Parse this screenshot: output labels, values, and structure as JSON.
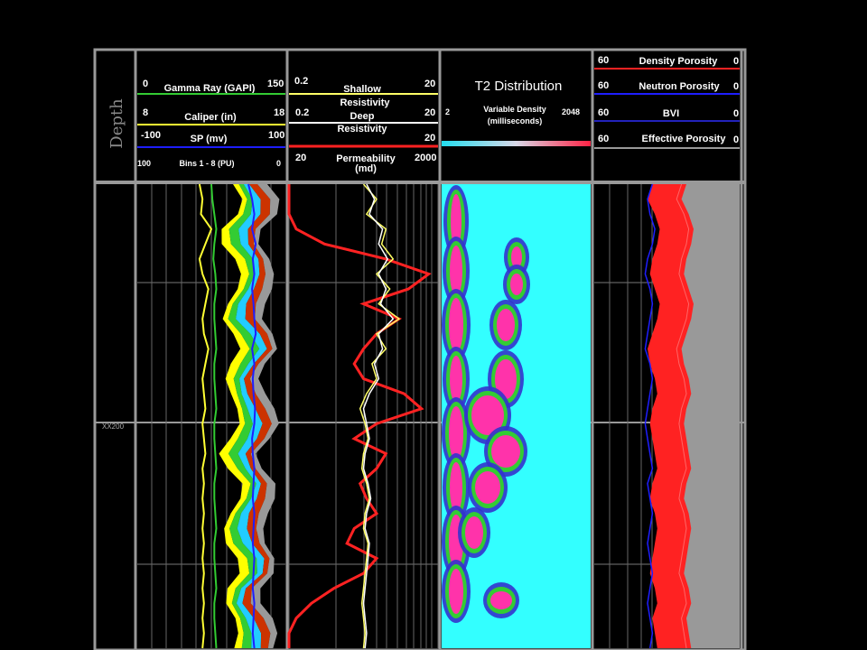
{
  "depth": {
    "title": "Depth",
    "tick_label": "XX200"
  },
  "track1": {
    "gamma": {
      "label": "Gamma Ray (GAPI)",
      "min": "0",
      "max": "150",
      "color": "#33cc33"
    },
    "caliper": {
      "label": "Caliper (in)",
      "min": "8",
      "max": "18",
      "color": "#ffff33"
    },
    "sp": {
      "label": "SP (mv)",
      "min": "-100",
      "max": "100",
      "color": "#0000cc"
    },
    "bins": {
      "label": "Bins 1 - 8 (PU)",
      "min": "100",
      "max": "0"
    }
  },
  "track2": {
    "shallow": {
      "label_1": "Shallow",
      "label_2": "Resistivity",
      "min": "0.2",
      "max": "20",
      "color": "#ffff66"
    },
    "deep": {
      "label_1": "Deep",
      "label_2": "Resistivity",
      "min": "0.2",
      "max": "20",
      "color": "#ffffff"
    },
    "perm": {
      "label_1": "Permeability",
      "label_2": "(md)",
      "min": "20",
      "max": "2000",
      "color": "#ff2222"
    }
  },
  "track3": {
    "title": "T2 Distribution",
    "sub_1": "Variable Density",
    "sub_2": "(milliseconds)",
    "min": "2",
    "max": "2048"
  },
  "track4": {
    "density": {
      "label": "Density Porosity",
      "min": "60",
      "max": "0",
      "color": "#ff2222"
    },
    "neutron": {
      "label": "Neutron Porosity",
      "min": "60",
      "max": "0",
      "color": "#1e1eff"
    },
    "bvi": {
      "label": "BVI",
      "min": "60",
      "max": "0",
      "color": "#2222bb"
    },
    "eff": {
      "label": "Effective Porosity",
      "min": "60",
      "max": "0",
      "color": "#999999"
    }
  },
  "chart_data": {
    "type": "well log",
    "depth_label": "XX200",
    "caliper": [
      12.2,
      12.4,
      12.3,
      13.0,
      12.6,
      12.2,
      12.4,
      12.8,
      12.6,
      12.4,
      12.5,
      12.8,
      12.6,
      12.4,
      12.5,
      12.6,
      12.4,
      12.5,
      12.6,
      12.4,
      12.5,
      12.4,
      12.5,
      12.4,
      12.5,
      12.4,
      12.5,
      12.4,
      12.5,
      12.4,
      12.5,
      12.4
    ],
    "gamma": [
      75,
      76,
      78,
      80,
      78,
      77,
      79,
      80,
      78,
      78,
      79,
      80,
      78,
      78,
      79,
      80,
      78,
      78,
      79,
      80,
      78,
      78,
      79,
      80,
      78,
      78,
      79,
      80,
      78,
      78,
      79,
      80
    ],
    "sp": [
      50,
      55,
      58,
      55,
      60,
      56,
      58,
      55,
      57,
      58,
      60,
      55,
      58,
      56,
      57,
      59,
      58,
      55,
      56,
      58,
      57,
      56,
      58,
      57,
      56,
      58,
      57,
      56,
      58,
      57,
      56,
      58
    ],
    "shallow_res": [
      2.0,
      3.0,
      2.2,
      4.0,
      3.5,
      5.0,
      3.0,
      4.5,
      3.2,
      6.0,
      3.0,
      4.0,
      2.6,
      3.0,
      2.2,
      1.8,
      2.1,
      2.3,
      2.0,
      1.9,
      2.2,
      2.4,
      2.1,
      2.0,
      2.3,
      2.2,
      2.1,
      2.0,
      1.9,
      2.0,
      2.1,
      2.0
    ],
    "deep_res": [
      2.2,
      2.8,
      2.4,
      3.6,
      3.2,
      4.2,
      3.2,
      4.0,
      3.4,
      5.0,
      3.2,
      3.6,
      2.8,
      3.2,
      2.4,
      2.0,
      2.2,
      2.4,
      2.1,
      2.0,
      2.3,
      2.5,
      2.2,
      2.1,
      2.4,
      2.3,
      2.2,
      2.1,
      2.0,
      2.1,
      2.2,
      2.1
    ],
    "permeability": [
      20,
      20,
      20,
      25,
      60,
      400,
      1500,
      800,
      200,
      600,
      300,
      200,
      150,
      200,
      700,
      1200,
      300,
      150,
      400,
      300,
      180,
      220,
      300,
      150,
      120,
      300,
      200,
      80,
      40,
      25,
      20,
      20
    ],
    "density_porosity": [
      28,
      30,
      27,
      25,
      26,
      28,
      29,
      27,
      25,
      26,
      28,
      30,
      29,
      27,
      26,
      28,
      29,
      28,
      27,
      26,
      28,
      29,
      27,
      26,
      27,
      28,
      29,
      27,
      26,
      28,
      27,
      26
    ],
    "neutron_porosity": [
      36,
      38,
      37,
      35,
      36,
      38,
      39,
      37,
      36,
      37,
      38,
      39,
      37,
      36,
      37,
      38,
      39,
      38,
      37,
      36,
      38,
      37,
      36,
      37,
      38,
      37,
      36,
      37,
      38,
      37,
      36,
      37
    ],
    "effective_porosity": [
      24,
      26,
      23,
      21,
      22,
      24,
      25,
      23,
      21,
      22,
      24,
      26,
      25,
      23,
      22,
      24,
      25,
      24,
      23,
      22,
      24,
      25,
      23,
      22,
      23,
      24,
      25,
      23,
      22,
      24,
      23,
      22
    ]
  }
}
